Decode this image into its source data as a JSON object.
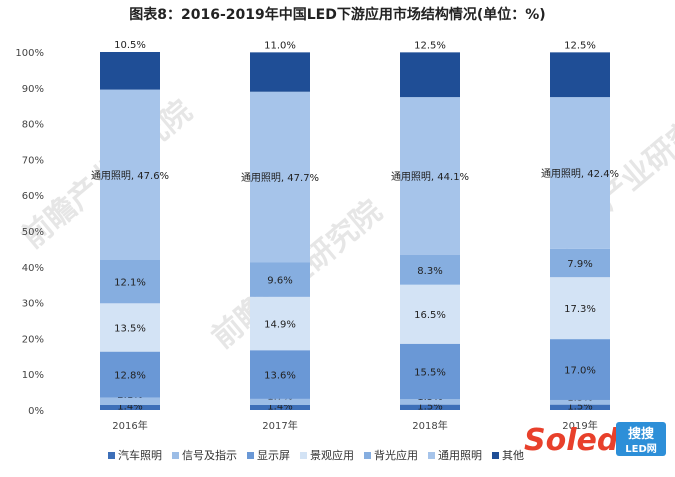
{
  "chart_data": {
    "type": "bar",
    "stacked": true,
    "title": "图表8：2016-2019年中国LED下游应用市场结构情况(单位：%)",
    "categories": [
      "2016年",
      "2017年",
      "2018年",
      "2019年"
    ],
    "ylim": [
      0,
      100
    ],
    "yticks": [
      "0%",
      "10%",
      "20%",
      "30%",
      "40%",
      "50%",
      "60%",
      "70%",
      "80%",
      "90%",
      "100%"
    ],
    "grid": false,
    "legend_position": "bottom",
    "series": [
      {
        "name": "汽车照明",
        "values": [
          1.4,
          1.4,
          1.5,
          1.5
        ],
        "labels": [
          "1.4%",
          "1.4%",
          "1.5%",
          "1.5%"
        ],
        "color": "#3d6fb8"
      },
      {
        "name": "信号及指示",
        "values": [
          2.1,
          1.7,
          1.5,
          1.3
        ],
        "labels": [
          "2.1%",
          "1.7%",
          "1.5%",
          "1.3%"
        ],
        "color": "#9cbde6"
      },
      {
        "name": "显示屏",
        "values": [
          12.8,
          13.6,
          15.5,
          17.0
        ],
        "labels": [
          "12.8%",
          "13.6%",
          "15.5%",
          "17.0%"
        ],
        "color": "#6a98d6"
      },
      {
        "name": "景观应用",
        "values": [
          13.5,
          14.9,
          16.5,
          17.3
        ],
        "labels": [
          "13.5%",
          "14.9%",
          "16.5%",
          "17.3%"
        ],
        "color": "#d3e3f5"
      },
      {
        "name": "背光应用",
        "values": [
          12.1,
          9.6,
          8.3,
          7.9
        ],
        "labels": [
          "12.1%",
          "9.6%",
          "8.3%",
          "7.9%"
        ],
        "color": "#86aee0"
      },
      {
        "name": "通用照明",
        "values": [
          47.6,
          47.7,
          44.1,
          42.4
        ],
        "labels": [
          "通用照明, 47.6%",
          "通用照明, 47.7%",
          "通用照明, 44.1%",
          "通用照明, 42.4%"
        ],
        "color": "#a6c4ea"
      },
      {
        "name": "其他",
        "values": [
          10.5,
          11.0,
          12.5,
          12.5
        ],
        "labels": [
          "10.5%",
          "11.0%",
          "12.5%",
          "12.5%"
        ],
        "color": "#1f4e96"
      }
    ]
  },
  "watermark_text": "前瞻产业研究院",
  "logo": {
    "brand": "Soled",
    "badge": "搜搜LED网"
  }
}
